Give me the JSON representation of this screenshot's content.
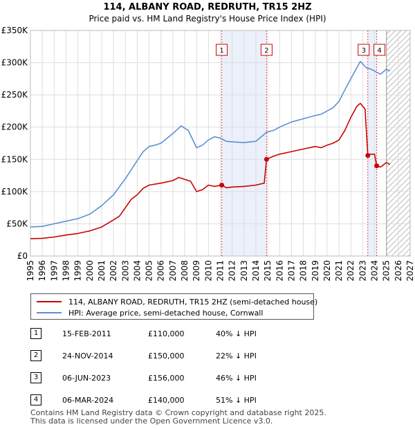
{
  "chart_data": {
    "type": "line",
    "title": "114, ALBANY ROAD, REDRUTH, TR15 2HZ",
    "subtitle": "Price paid vs. HM Land Registry's House Price Index (HPI)",
    "xlim": [
      1995,
      2027
    ],
    "ylim": [
      0,
      350000
    ],
    "x_ticks": [
      1995,
      1996,
      1997,
      1998,
      1999,
      2000,
      2001,
      2002,
      2003,
      2004,
      2005,
      2006,
      2007,
      2008,
      2009,
      2010,
      2011,
      2012,
      2013,
      2014,
      2015,
      2016,
      2017,
      2018,
      2019,
      2020,
      2021,
      2022,
      2023,
      2024,
      2025,
      2026,
      2027
    ],
    "y_ticks": [
      0,
      50000,
      100000,
      150000,
      200000,
      250000,
      300000,
      350000
    ],
    "y_tick_labels": [
      "£0",
      "£50K",
      "£100K",
      "£150K",
      "£200K",
      "£250K",
      "£300K",
      "£350K"
    ],
    "forecast_start": 2025.0,
    "series": [
      {
        "name": "114, ALBANY ROAD, REDRUTH, TR15 2HZ (semi-detached house)",
        "color": "#cc0000",
        "points": [
          [
            1995.0,
            27000
          ],
          [
            1996.0,
            27500
          ],
          [
            1997.0,
            29500
          ],
          [
            1998.0,
            32500
          ],
          [
            1999.0,
            35000
          ],
          [
            2000.0,
            39000
          ],
          [
            2001.0,
            45000
          ],
          [
            2002.0,
            56000
          ],
          [
            2002.5,
            62000
          ],
          [
            2003.0,
            75000
          ],
          [
            2003.5,
            88000
          ],
          [
            2004.0,
            95000
          ],
          [
            2004.5,
            105000
          ],
          [
            2005.0,
            110000
          ],
          [
            2006.0,
            113000
          ],
          [
            2007.0,
            117000
          ],
          [
            2007.5,
            122000
          ],
          [
            2008.0,
            119000
          ],
          [
            2008.5,
            116000
          ],
          [
            2009.0,
            100000
          ],
          [
            2009.5,
            103000
          ],
          [
            2010.0,
            110000
          ],
          [
            2010.5,
            108000
          ],
          [
            2011.12,
            110000
          ],
          [
            2011.5,
            106000
          ],
          [
            2012.0,
            107000
          ],
          [
            2013.0,
            108000
          ],
          [
            2014.0,
            110000
          ],
          [
            2014.7,
            113000
          ],
          [
            2014.9,
            150000
          ],
          [
            2015.5,
            155000
          ],
          [
            2016.0,
            158000
          ],
          [
            2017.0,
            162000
          ],
          [
            2018.0,
            166000
          ],
          [
            2019.0,
            170000
          ],
          [
            2019.5,
            168000
          ],
          [
            2020.0,
            172000
          ],
          [
            2020.5,
            175000
          ],
          [
            2021.0,
            180000
          ],
          [
            2021.5,
            195000
          ],
          [
            2022.0,
            215000
          ],
          [
            2022.5,
            232000
          ],
          [
            2022.8,
            237000
          ],
          [
            2023.2,
            228000
          ],
          [
            2023.43,
            156000
          ],
          [
            2023.6,
            158000
          ],
          [
            2024.0,
            158000
          ],
          [
            2024.18,
            140000
          ],
          [
            2024.5,
            138000
          ],
          [
            2025.0,
            145000
          ],
          [
            2025.3,
            142000
          ]
        ]
      },
      {
        "name": "HPI: Average price, semi-detached house, Cornwall",
        "color": "#5b8fd4",
        "points": [
          [
            1995.0,
            45000
          ],
          [
            1996.0,
            46000
          ],
          [
            1997.0,
            50000
          ],
          [
            1998.0,
            54000
          ],
          [
            1999.0,
            58000
          ],
          [
            2000.0,
            65000
          ],
          [
            2001.0,
            78000
          ],
          [
            2002.0,
            95000
          ],
          [
            2003.0,
            120000
          ],
          [
            2004.0,
            148000
          ],
          [
            2004.5,
            162000
          ],
          [
            2005.0,
            170000
          ],
          [
            2005.5,
            172000
          ],
          [
            2006.0,
            175000
          ],
          [
            2007.0,
            190000
          ],
          [
            2007.7,
            202000
          ],
          [
            2008.3,
            195000
          ],
          [
            2009.0,
            168000
          ],
          [
            2009.5,
            172000
          ],
          [
            2010.0,
            180000
          ],
          [
            2010.5,
            185000
          ],
          [
            2011.0,
            183000
          ],
          [
            2011.5,
            178000
          ],
          [
            2012.0,
            177000
          ],
          [
            2013.0,
            176000
          ],
          [
            2014.0,
            178000
          ],
          [
            2014.9,
            192000
          ],
          [
            2015.5,
            195000
          ],
          [
            2016.0,
            200000
          ],
          [
            2017.0,
            208000
          ],
          [
            2018.0,
            213000
          ],
          [
            2019.0,
            218000
          ],
          [
            2019.5,
            220000
          ],
          [
            2020.0,
            225000
          ],
          [
            2020.5,
            230000
          ],
          [
            2021.0,
            240000
          ],
          [
            2021.5,
            258000
          ],
          [
            2022.0,
            275000
          ],
          [
            2022.5,
            292000
          ],
          [
            2022.8,
            302000
          ],
          [
            2023.3,
            292000
          ],
          [
            2023.7,
            290000
          ],
          [
            2024.0,
            287000
          ],
          [
            2024.5,
            282000
          ],
          [
            2025.0,
            290000
          ],
          [
            2025.3,
            287000
          ]
        ]
      }
    ],
    "transactions": [
      {
        "id": "1",
        "x": 2011.12,
        "price": 110000,
        "date": "15-FEB-2011",
        "price_label": "£110,000",
        "hpi_label": "40% ↓ HPI"
      },
      {
        "id": "2",
        "x": 2014.9,
        "price": 150000,
        "date": "24-NOV-2014",
        "price_label": "£150,000",
        "hpi_label": "22% ↓ HPI"
      },
      {
        "id": "3",
        "x": 2023.43,
        "price": 156000,
        "date": "06-JUN-2023",
        "price_label": "£156,000",
        "hpi_label": "46% ↓ HPI"
      },
      {
        "id": "4",
        "x": 2024.18,
        "price": 140000,
        "date": "06-MAR-2024",
        "price_label": "£140,000",
        "hpi_label": "51% ↓ HPI"
      }
    ]
  },
  "legend": {
    "property_label": "114, ALBANY ROAD, REDRUTH, TR15 2HZ (semi-detached house)",
    "hpi_label": "HPI: Average price, semi-detached house, Cornwall"
  },
  "footer": {
    "line1": "Contains HM Land Registry data © Crown copyright and database right 2025.",
    "line2": "This data is licensed under the Open Government Licence v3.0."
  },
  "colors": {
    "property": "#cc0000",
    "hpi": "#5b8fd4",
    "shade": "#dde6f7",
    "grid": "#dddddd"
  }
}
